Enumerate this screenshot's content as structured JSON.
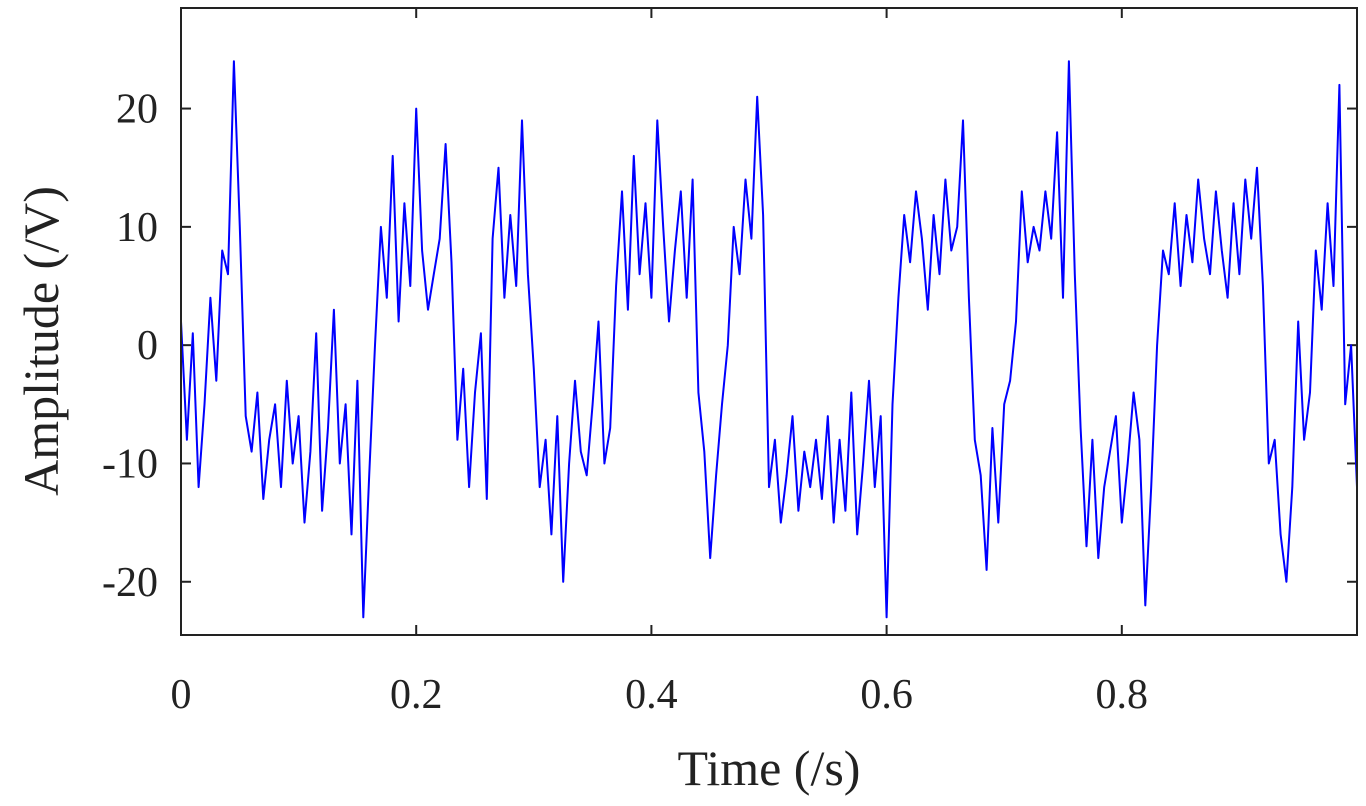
{
  "chart_data": {
    "type": "line",
    "title": "",
    "xlabel": "Time (/s)",
    "ylabel": "Amplitude (/V)",
    "xlim": [
      0,
      1
    ],
    "ylim": [
      -24.5,
      28.5
    ],
    "grid": false,
    "legend": "none",
    "line_color": "#0000ff",
    "xticks": [
      0,
      0.2,
      0.4,
      0.6,
      0.8
    ],
    "xtick_labels": [
      "0",
      "0.2",
      "0.4",
      "0.6",
      "0.8"
    ],
    "yticks": [
      20,
      10,
      0,
      -10,
      -20
    ],
    "ytick_labels": [
      "20",
      "10",
      "0",
      "-10",
      "-20"
    ],
    "series": [
      {
        "x": [
          0.0,
          0.005,
          0.01,
          0.015,
          0.02,
          0.025,
          0.03,
          0.035,
          0.04,
          0.045,
          0.05,
          0.055,
          0.06,
          0.065,
          0.07,
          0.075,
          0.08,
          0.085,
          0.09,
          0.095,
          0.1,
          0.105,
          0.11,
          0.115,
          0.12,
          0.125,
          0.13,
          0.135,
          0.14,
          0.145,
          0.15,
          0.155,
          0.16,
          0.165,
          0.17,
          0.175,
          0.18,
          0.185,
          0.19,
          0.195,
          0.2,
          0.205,
          0.21,
          0.215,
          0.22,
          0.225,
          0.23,
          0.235,
          0.24,
          0.245,
          0.25,
          0.255,
          0.26,
          0.265,
          0.27,
          0.275,
          0.28,
          0.285,
          0.29,
          0.295,
          0.3,
          0.305,
          0.31,
          0.315,
          0.32,
          0.325,
          0.33,
          0.335,
          0.34,
          0.345,
          0.35,
          0.355,
          0.36,
          0.365,
          0.37,
          0.375,
          0.38,
          0.385,
          0.39,
          0.395,
          0.4,
          0.405,
          0.41,
          0.415,
          0.42,
          0.425,
          0.43,
          0.435,
          0.44,
          0.445,
          0.45,
          0.455,
          0.46,
          0.465,
          0.47,
          0.475,
          0.48,
          0.485,
          0.49,
          0.495,
          0.5,
          0.505,
          0.51,
          0.515,
          0.52,
          0.525,
          0.53,
          0.535,
          0.54,
          0.545,
          0.55,
          0.555,
          0.56,
          0.565,
          0.57,
          0.575,
          0.58,
          0.585,
          0.59,
          0.595,
          0.6,
          0.605,
          0.61,
          0.615,
          0.62,
          0.625,
          0.63,
          0.635,
          0.64,
          0.645,
          0.65,
          0.655,
          0.66,
          0.665,
          0.67,
          0.675,
          0.68,
          0.685,
          0.69,
          0.695,
          0.7,
          0.705,
          0.71,
          0.715,
          0.72,
          0.725,
          0.73,
          0.735,
          0.74,
          0.745,
          0.75,
          0.755,
          0.76,
          0.765,
          0.77,
          0.775,
          0.78,
          0.785,
          0.79,
          0.795,
          0.8,
          0.805,
          0.81,
          0.815,
          0.82,
          0.825,
          0.83,
          0.835,
          0.84,
          0.845,
          0.85,
          0.855,
          0.86,
          0.865,
          0.87,
          0.875,
          0.88,
          0.885,
          0.89,
          0.895,
          0.9,
          0.905,
          0.91,
          0.915,
          0.92,
          0.925,
          0.93,
          0.935,
          0.94,
          0.945,
          0.95,
          0.955,
          0.96,
          0.965,
          0.97,
          0.975,
          0.98,
          0.985,
          0.99,
          0.995,
          1.0
        ],
        "y": [
          2,
          -8,
          1,
          -12,
          -5,
          4,
          -3,
          8,
          6,
          24,
          10,
          -6,
          -9,
          -4,
          -13,
          -8,
          -5,
          -12,
          -3,
          -10,
          -6,
          -15,
          -9,
          1,
          -14,
          -7,
          3,
          -10,
          -5,
          -16,
          -3,
          -23,
          -11,
          0,
          10,
          4,
          16,
          2,
          12,
          5,
          20,
          8,
          3,
          6,
          9,
          17,
          7,
          -8,
          -2,
          -12,
          -4,
          1,
          -13,
          9,
          15,
          4,
          11,
          5,
          19,
          6,
          -2,
          -12,
          -8,
          -16,
          -6,
          -20,
          -10,
          -3,
          -9,
          -11,
          -5,
          2,
          -10,
          -7,
          5,
          13,
          3,
          16,
          6,
          12,
          4,
          19,
          10,
          2,
          8,
          13,
          4,
          14,
          -4,
          -9,
          -18,
          -11,
          -5,
          0,
          10,
          6,
          14,
          9,
          21,
          11,
          -12,
          -8,
          -15,
          -11,
          -6,
          -14,
          -9,
          -12,
          -8,
          -13,
          -6,
          -15,
          -8,
          -14,
          -4,
          -16,
          -10,
          -3,
          -12,
          -6,
          -23,
          -5,
          4,
          11,
          7,
          13,
          9,
          3,
          11,
          6,
          14,
          8,
          10,
          19,
          4,
          -8,
          -11,
          -19,
          -7,
          -15,
          -5,
          -3,
          2,
          13,
          7,
          10,
          8,
          13,
          9,
          18,
          4,
          24,
          6,
          -7,
          -17,
          -8,
          -18,
          -12,
          -9,
          -6,
          -15,
          -10,
          -4,
          -8,
          -22,
          -12,
          0,
          8,
          6,
          12,
          5,
          11,
          7,
          14,
          9,
          6,
          13,
          8,
          4,
          12,
          6,
          14,
          9,
          15,
          5,
          -10,
          -8,
          -16,
          -20,
          -12,
          2,
          -8,
          -4,
          8,
          3,
          12,
          5,
          22,
          -5,
          0,
          -12
        ]
      }
    ]
  }
}
